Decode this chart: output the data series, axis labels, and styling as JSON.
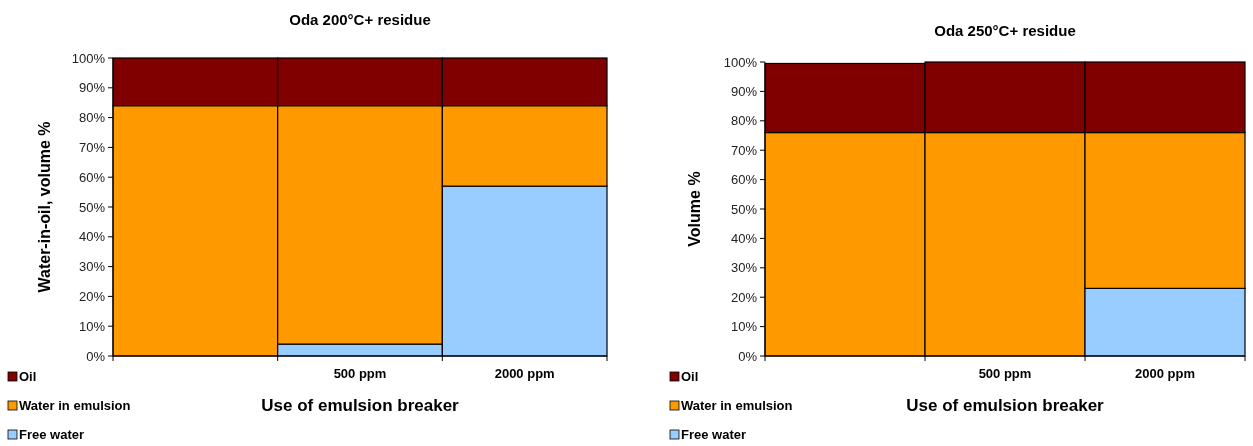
{
  "chart_data": [
    {
      "type": "bar",
      "title": "Oda 200°C+ residue",
      "xlabel": "Use of emulsion breaker",
      "ylabel": "Water-in-oil, volume %",
      "categories": [
        null,
        "500 ppm",
        "2000 ppm"
      ],
      "stacked": true,
      "ylim": [
        0,
        100
      ],
      "yticks": [
        {
          "value": 0,
          "label": "0%"
        },
        {
          "value": 10,
          "label": "10%"
        },
        {
          "value": 20,
          "label": "20%"
        },
        {
          "value": 30,
          "label": "30%"
        },
        {
          "value": 40,
          "label": "40%"
        },
        {
          "value": 50,
          "label": "50%"
        },
        {
          "value": 60,
          "label": "60%"
        },
        {
          "value": 70,
          "label": "70%"
        },
        {
          "value": 80,
          "label": "80%"
        },
        {
          "value": 90,
          "label": "90%"
        },
        {
          "value": 100,
          "label": "100%"
        }
      ],
      "legend": "bottom left",
      "series": [
        {
          "name": "Free water",
          "color": "#99ccff",
          "values": [
            0,
            4,
            57
          ]
        },
        {
          "name": "Water in emulsion",
          "color": "#ff9900",
          "values": [
            84,
            80,
            27
          ]
        },
        {
          "name": "Oil",
          "color": "#800000",
          "values": [
            16,
            16,
            16
          ]
        }
      ]
    },
    {
      "type": "bar",
      "title": "Oda 250°C+ residue",
      "xlabel": "Use of emulsion breaker",
      "ylabel": "Volume %",
      "categories": [
        null,
        "500 ppm",
        "2000 ppm"
      ],
      "stacked": true,
      "ylim": [
        0,
        100
      ],
      "yticks": [
        {
          "value": 0,
          "label": "0%"
        },
        {
          "value": 10,
          "label": "10%"
        },
        {
          "value": 20,
          "label": "20%"
        },
        {
          "value": 30,
          "label": "30%"
        },
        {
          "value": 40,
          "label": "40%"
        },
        {
          "value": 50,
          "label": "50%"
        },
        {
          "value": 60,
          "label": "60%"
        },
        {
          "value": 70,
          "label": "70%"
        },
        {
          "value": 80,
          "label": "80%"
        },
        {
          "value": 90,
          "label": "90%"
        },
        {
          "value": 100,
          "label": "100%"
        }
      ],
      "legend": "bottom left",
      "series": [
        {
          "name": "Free water",
          "color": "#99ccff",
          "values": [
            0,
            0,
            23
          ]
        },
        {
          "name": "Water in emulsion",
          "color": "#ff9900",
          "values": [
            76,
            76,
            53
          ]
        },
        {
          "name": "Oil",
          "color": "#800000",
          "values": [
            23.5,
            24,
            24
          ]
        }
      ]
    }
  ]
}
